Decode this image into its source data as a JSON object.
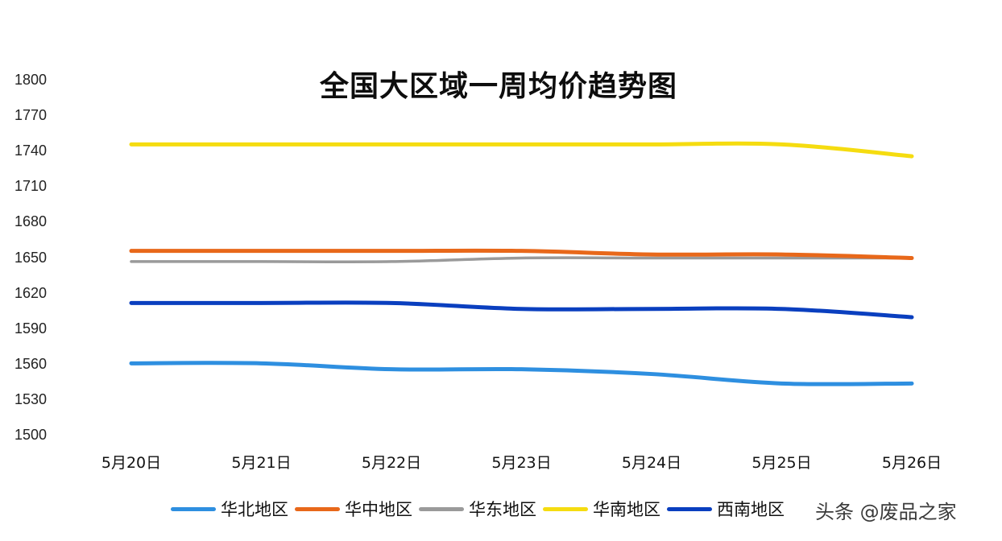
{
  "chart_data": {
    "type": "line",
    "title": "全国大区域一周均价趋势图",
    "xlabel": "",
    "ylabel": "",
    "ylim": [
      1500,
      1800
    ],
    "yticks": [
      1800,
      1770,
      1740,
      1710,
      1680,
      1650,
      1620,
      1590,
      1560,
      1530,
      1500
    ],
    "grid": false,
    "legend_position": "bottom",
    "categories": [
      "5月20日",
      "5月21日",
      "5月22日",
      "5月23日",
      "5月24日",
      "5月25日",
      "5月26日"
    ],
    "series": [
      {
        "name": "华北地区",
        "color": "#2e8fe0",
        "values": [
          1561,
          1561,
          1556,
          1556,
          1552,
          1544,
          1544
        ]
      },
      {
        "name": "华中地区",
        "color": "#e8681a",
        "values": [
          1656,
          1656,
          1656,
          1656,
          1653,
          1653,
          1650
        ]
      },
      {
        "name": "华东地区",
        "color": "#9a9a9a",
        "values": [
          1647,
          1647,
          1647,
          1650,
          1650,
          1650,
          1650
        ]
      },
      {
        "name": "华南地区",
        "color": "#f5dc10",
        "values": [
          1746,
          1746,
          1746,
          1746,
          1746,
          1746,
          1736
        ]
      },
      {
        "name": "西南地区",
        "color": "#0a3fbf",
        "values": [
          1612,
          1612,
          1612,
          1607,
          1607,
          1607,
          1600
        ]
      }
    ]
  },
  "watermark": "头条 @废品之家"
}
